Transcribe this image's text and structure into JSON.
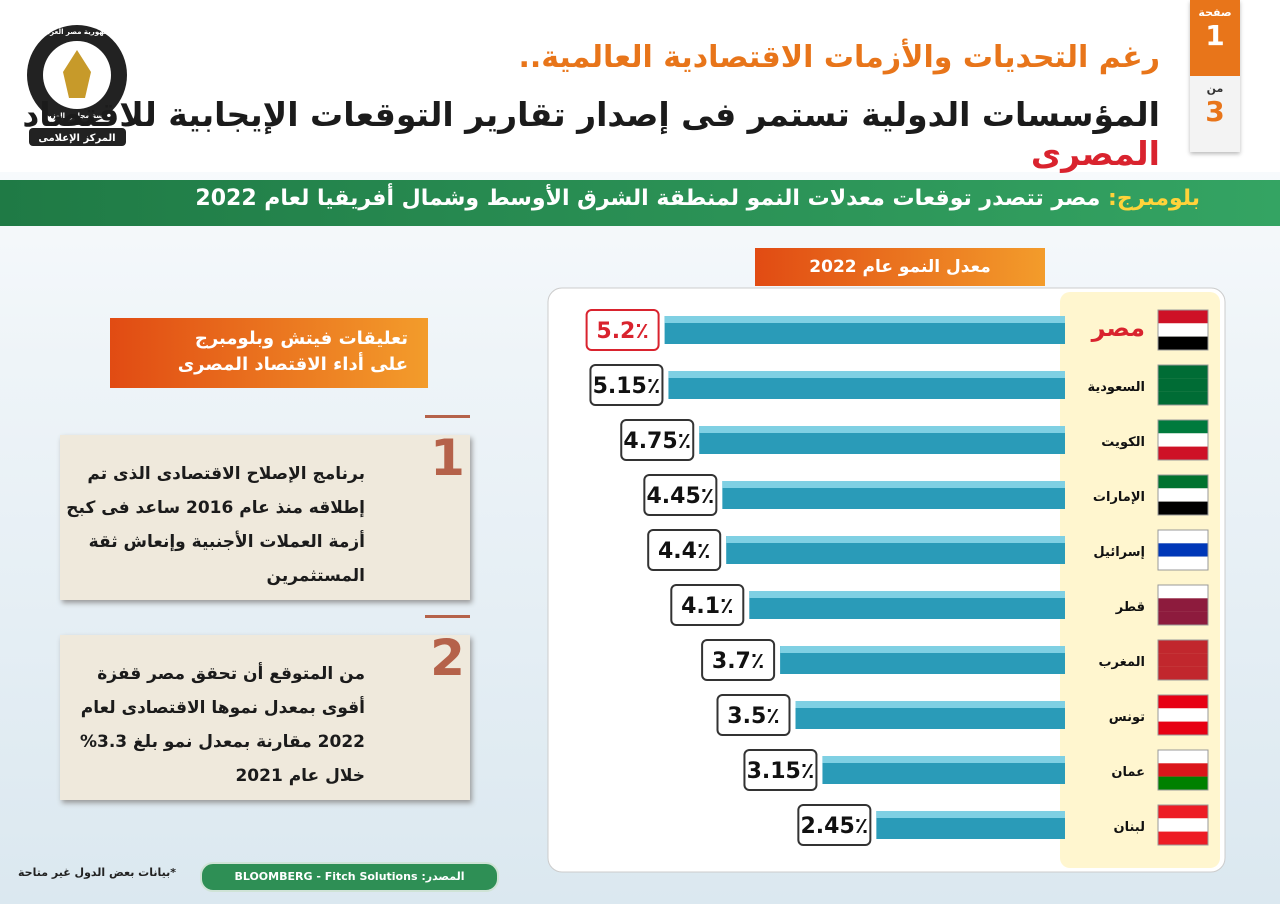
{
  "header": {
    "page_word": "صفحة",
    "page_number": "1",
    "of_word": "من",
    "page_total": "3",
    "title_line1": "رغم التحديات والأزمات الاقتصادية العالمية..",
    "title_line2": "المؤسسات الدولية تستمر فى إصدار تقارير التوقعات الإيجابية للاقتصاد",
    "title_line2_highlight": "المصرى",
    "logo_top": "جمهورية مصر العربية",
    "logo_middle": "رئاسة مجلس الوزراء",
    "logo_bottom": "المركز الإعلامى"
  },
  "subtitle": {
    "source": "بلومبرج:",
    "text": "مصر تتصدر توقعات معدلات النمو لمنطقة الشرق الأوسط وشمال أفريقيا لعام 2022"
  },
  "comments": {
    "title_lines": [
      "تعليقات فيتش وبلومبرج",
      "على أداء الاقتصاد المصرى"
    ],
    "items": [
      {
        "number": "1",
        "text": "برنامج الإصلاح الاقتصادى الذى تم إطلاقه منذ عام 2016 ساعد فى كبح أزمة العملات الأجنبية وإنعاش ثقة المستثمرين"
      },
      {
        "number": "2",
        "text": "من المتوقع أن تحقق مصر قفزة أقوى بمعدل نموها الاقتصادى لعام 2022 مقارنة بمعدل نمو بلغ 3.3% خلال عام 2021"
      }
    ]
  },
  "source": {
    "label": "المصدر:",
    "text": "BLOOMBERG - Fitch Solutions"
  },
  "footnote": "*بيانات بعض الدول غير متاحة",
  "chart_data": {
    "type": "bar",
    "orientation": "horizontal",
    "title": "معدل النمو عام 2022",
    "categories": [
      "مصر",
      "السعودية",
      "الكويت",
      "الإمارات",
      "إسرائيل",
      "قطر",
      "المغرب",
      "تونس",
      "عمان",
      "لبنان"
    ],
    "values": [
      5.2,
      5.15,
      4.75,
      4.45,
      4.4,
      4.1,
      3.7,
      3.5,
      3.15,
      2.45
    ],
    "value_labels": [
      "5.2٪",
      "5.15٪",
      "4.75٪",
      "4.45٪",
      "4.4٪",
      "4.1٪",
      "3.7٪",
      "3.5٪",
      "3.15٪",
      "2.45٪"
    ],
    "color": "#2a9bb8",
    "highlight_color": "#d9232e"
  }
}
